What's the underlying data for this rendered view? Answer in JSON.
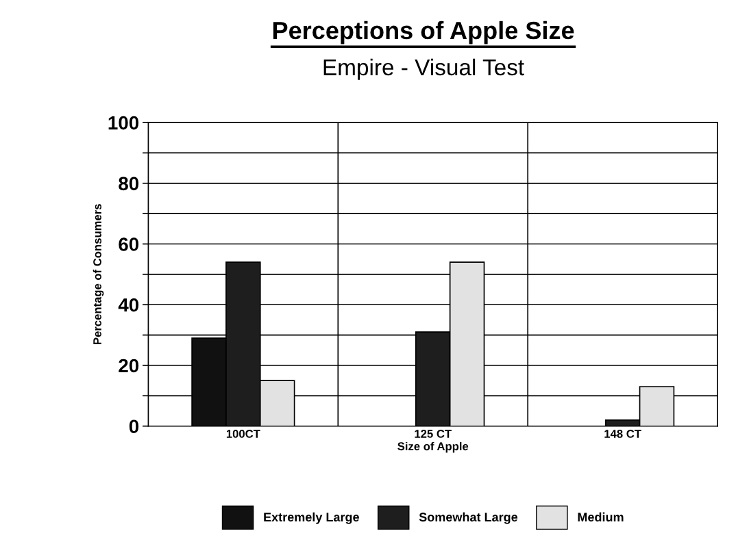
{
  "chart_data": {
    "type": "bar",
    "title": "Perceptions of Apple Size",
    "subtitle": "Empire - Visual Test",
    "xlabel": "Size of Apple",
    "ylabel": "Percentage of Consumers",
    "categories": [
      "100CT",
      "125 CT",
      "148 CT"
    ],
    "series": [
      {
        "name": "Extremely Large",
        "color": "#111111",
        "values": [
          29,
          null,
          null
        ]
      },
      {
        "name": "Somewhat Large",
        "color": "#1e1e1e",
        "values": [
          54,
          31,
          2
        ]
      },
      {
        "name": "Medium",
        "color": "#e2e2e2",
        "values": [
          15,
          54,
          13
        ]
      }
    ],
    "ylim": [
      0,
      100
    ],
    "yticks": [
      0,
      {
        "value": 10,
        "label": null
      },
      20,
      {
        "value": 30,
        "label": null
      },
      40,
      {
        "value": 50,
        "label": null
      },
      60,
      {
        "value": 70,
        "label": null
      },
      80,
      {
        "value": 90,
        "label": null
      },
      100
    ],
    "grid": true,
    "legend": "bottom"
  }
}
